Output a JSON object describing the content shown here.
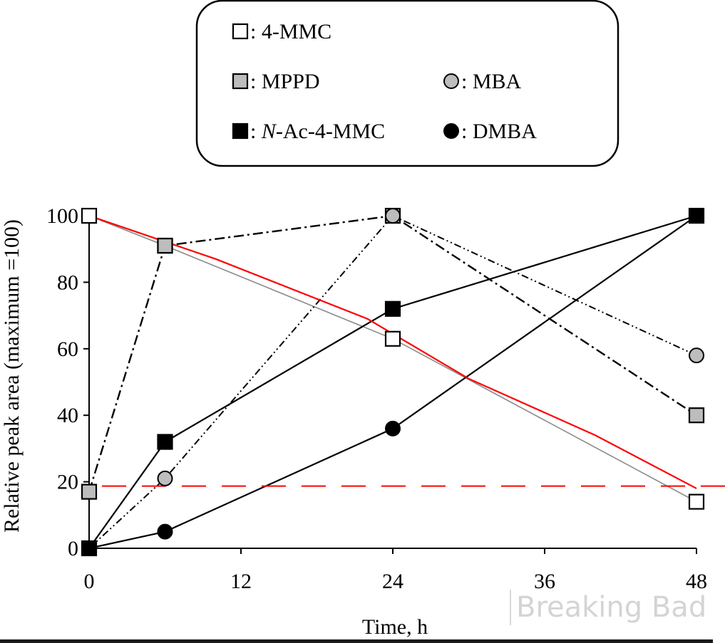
{
  "chart_data": {
    "type": "line",
    "xlabel": "Time, h",
    "ylabel": "Relative peak area (maximum =100)",
    "xlim": [
      0,
      48
    ],
    "ylim": [
      0,
      100
    ],
    "x_ticks": [
      0,
      12,
      24,
      36,
      48
    ],
    "y_ticks": [
      0,
      20,
      40,
      60,
      80,
      100
    ],
    "grid": false,
    "legend_position": "top-center",
    "series": [
      {
        "name": "4-MMC",
        "marker": "square",
        "fill": "#ffffff",
        "line": "solid-gray",
        "x": [
          0,
          6,
          24,
          48
        ],
        "y": [
          100,
          91,
          63,
          14
        ]
      },
      {
        "name": "MPPD",
        "marker": "square",
        "fill": "#bdbdbd",
        "line": "dash-dot",
        "x": [
          0,
          6,
          24,
          48
        ],
        "y": [
          17,
          91,
          100,
          40
        ]
      },
      {
        "name": "MBA",
        "marker": "circle",
        "fill": "#bdbdbd",
        "line": "dash-dot-dot",
        "x": [
          0,
          6,
          24,
          48
        ],
        "y": [
          0,
          21,
          100,
          58
        ]
      },
      {
        "name": "N-Ac-4-MMC",
        "name_parts": [
          "N",
          "-Ac-4-MMC"
        ],
        "marker": "square",
        "fill": "#000000",
        "line": "solid",
        "x": [
          0,
          6,
          24,
          48
        ],
        "y": [
          0,
          32,
          72,
          100
        ]
      },
      {
        "name": "DMBA",
        "marker": "circle",
        "fill": "#000000",
        "line": "solid",
        "x": [
          0,
          6,
          24,
          48
        ],
        "y": [
          0,
          5,
          36,
          100
        ]
      }
    ],
    "annotations": {
      "red_trend_line": {
        "color": "#ff0000",
        "x": [
          0,
          10,
          22,
          30,
          40,
          48
        ],
        "y": [
          100,
          87,
          69,
          51,
          34,
          18
        ]
      },
      "red_threshold_dashed": {
        "color": "#ff0000",
        "y": 20
      }
    }
  },
  "watermark": "Breaking Bad",
  "colors": {
    "red": "#ff0000",
    "gray_fill": "#bdbdbd",
    "black": "#000000"
  }
}
